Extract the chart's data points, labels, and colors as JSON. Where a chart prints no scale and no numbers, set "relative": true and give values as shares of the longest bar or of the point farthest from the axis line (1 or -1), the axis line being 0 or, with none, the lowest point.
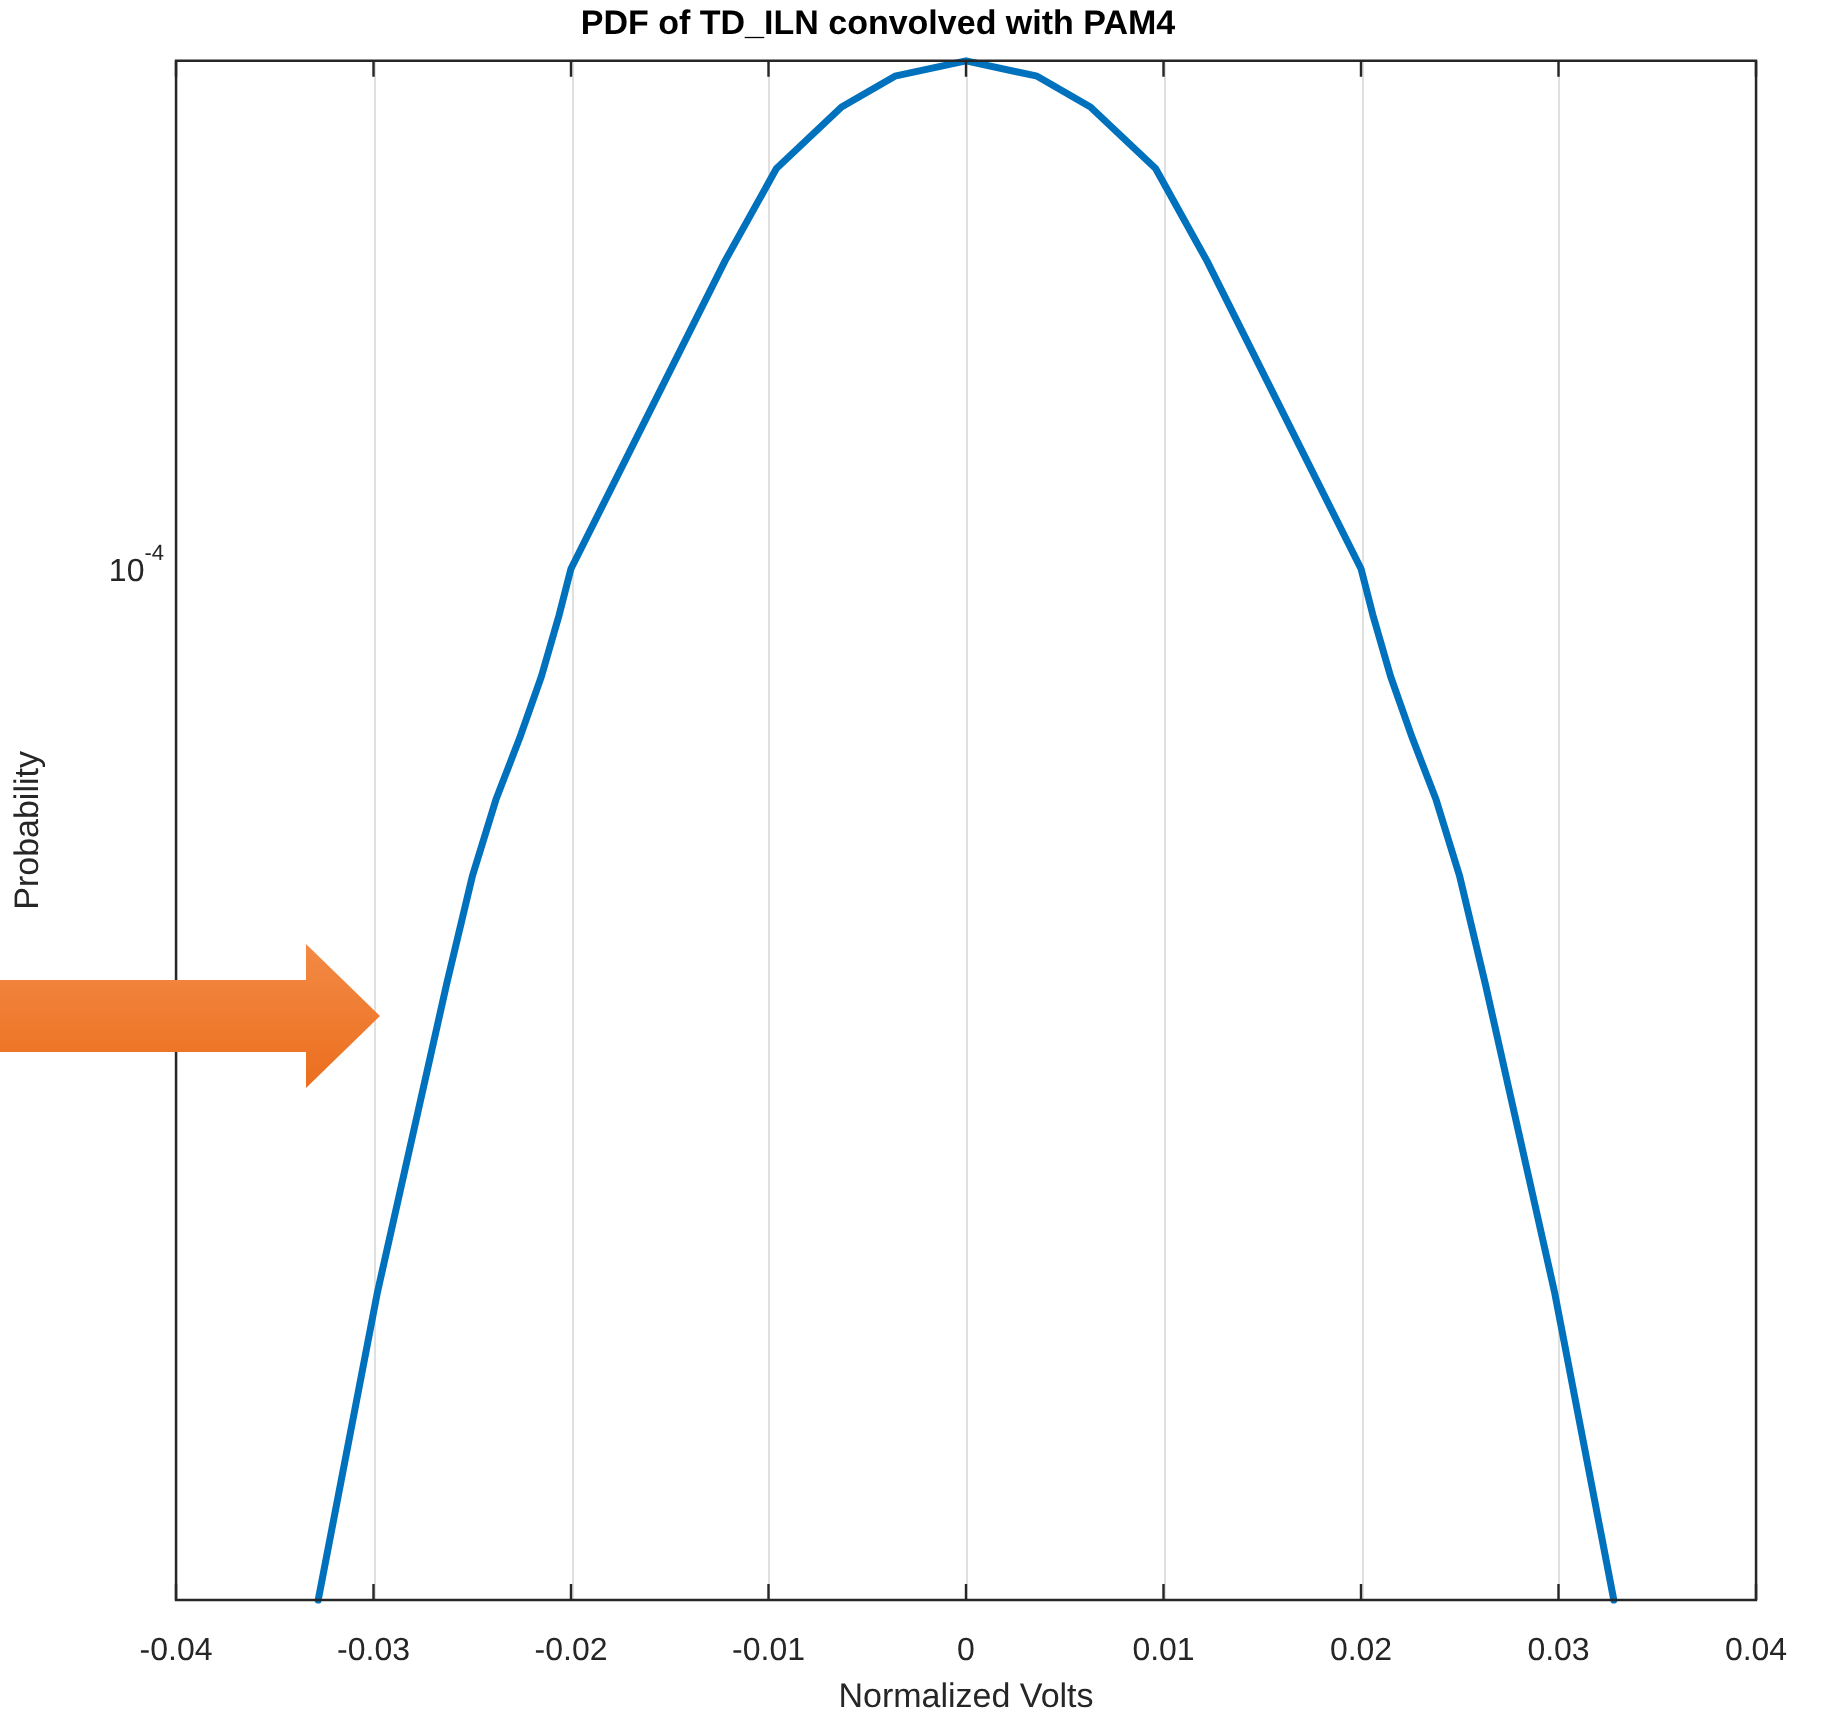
{
  "chart_data": {
    "type": "line",
    "title": "PDF of TD_ILN convolved with PAM4",
    "xlabel": "Normalized Volts",
    "ylabel": "Probability",
    "relative": true,
    "grid": "x",
    "legend": false,
    "marker": "none",
    "line_style": "solid",
    "annotations": [
      "10$^{-4}$"
    ],
    "xlim": [
      -0.04,
      0.04
    ],
    "xticks": [
      -0.04,
      -0.03,
      -0.02,
      -0.01,
      0,
      0.01,
      0.02,
      0.03,
      0.04
    ],
    "series": [
      {
        "color": "#0072bd",
        "x": [
          -0.0328,
          -0.0298,
          -0.0277,
          -0.0263,
          -0.025,
          -0.0238,
          -0.0226,
          -0.0215,
          -0.0206,
          -0.02,
          -0.0122,
          -0.0096,
          -0.0063,
          -0.0036,
          0,
          0.0036,
          0.0063,
          0.0096,
          0.0122,
          0.02,
          0.0206,
          0.0215,
          0.0226,
          0.0238,
          0.025,
          0.0263,
          0.0277,
          0.0298,
          0.0328
        ],
        "values": [
          0,
          0.2,
          0.32,
          0.4,
          0.47,
          0.52,
          0.56,
          0.6,
          0.64,
          0.67,
          0.87,
          0.93,
          0.97,
          0.99,
          1,
          0.99,
          0.97,
          0.93,
          0.87,
          0.67,
          0.64,
          0.6,
          0.56,
          0.52,
          0.47,
          0.4,
          0.32,
          0.2,
          0
        ]
      }
    ]
  }
}
